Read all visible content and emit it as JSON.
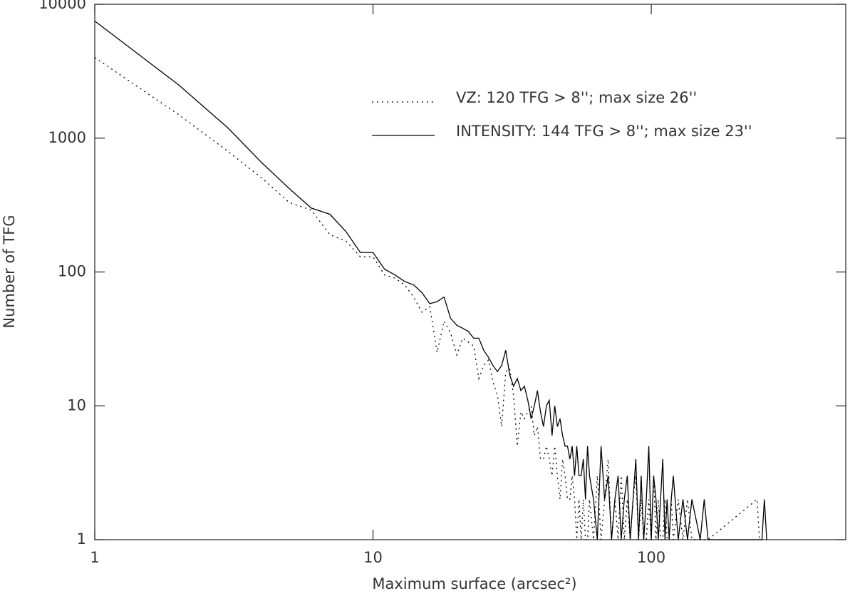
{
  "chart_data": {
    "type": "line",
    "xlabel": "Maximum surface (arcsec²)",
    "ylabel": "Number of TFG",
    "xscale": "log",
    "yscale": "log",
    "xlim": [
      1,
      500
    ],
    "ylim": [
      1,
      10000
    ],
    "xticks": [
      1,
      10,
      100
    ],
    "yticks": [
      1,
      10,
      100,
      1000,
      10000
    ],
    "legend": "upper right",
    "x": [
      1,
      2,
      3,
      4,
      5,
      6,
      7,
      8,
      9,
      10,
      11,
      12,
      13,
      14,
      15,
      16,
      17,
      18,
      19,
      20,
      21,
      22,
      23,
      24,
      25,
      26,
      27,
      28,
      29,
      30,
      31,
      32,
      33,
      34,
      35,
      36,
      37,
      38,
      39,
      40,
      41,
      42,
      43,
      44,
      45,
      46,
      47,
      48,
      49,
      50,
      51,
      52,
      53,
      54,
      55,
      56,
      57,
      58,
      59,
      60,
      62,
      64,
      66,
      68,
      70,
      72,
      74,
      76,
      78,
      80,
      82,
      84,
      86,
      88,
      90,
      92,
      94,
      96,
      98,
      100,
      102,
      104,
      106,
      108,
      110,
      112,
      114,
      116,
      118,
      120,
      125,
      130,
      135,
      140,
      150,
      155,
      160,
      240,
      245,
      250,
      255,
      260
    ],
    "series": [
      {
        "name": "VZ: 120 TFG > 8''; max size 26''",
        "color": "#000000",
        "dash": "dotted",
        "values": [
          4000,
          1500,
          800,
          500,
          330,
          290,
          190,
          170,
          130,
          130,
          95,
          90,
          80,
          65,
          50,
          55,
          25,
          43,
          35,
          24,
          32,
          30,
          28,
          16,
          20,
          22,
          15,
          12,
          7,
          18,
          19,
          12,
          5,
          9,
          8,
          9,
          10,
          6,
          7,
          4,
          4,
          5,
          4,
          3,
          5,
          3,
          2,
          4,
          3,
          2,
          2,
          3,
          2,
          1,
          2,
          1,
          2,
          1,
          1,
          2,
          1,
          3,
          1,
          2,
          4,
          1,
          2,
          1,
          3,
          1,
          2,
          1,
          2,
          3,
          1,
          2,
          1,
          1,
          2,
          1,
          3,
          1,
          2,
          1,
          1,
          2,
          1,
          1,
          2,
          1,
          2,
          1,
          2,
          1,
          1,
          1,
          1,
          2,
          1,
          1,
          1,
          1
        ]
      },
      {
        "name": "INTENSITY: 144 TFG > 8''; max size 23''",
        "color": "#000000",
        "dash": "solid",
        "values": [
          7500,
          2500,
          1200,
          650,
          420,
          300,
          270,
          200,
          140,
          140,
          105,
          95,
          85,
          80,
          70,
          58,
          60,
          65,
          45,
          40,
          38,
          36,
          32,
          32,
          26,
          23,
          20,
          18,
          20,
          26,
          17,
          14,
          16,
          13,
          14,
          11,
          8,
          10,
          13,
          9,
          7,
          10,
          11,
          6,
          10,
          7,
          8,
          6,
          5,
          5,
          4,
          5,
          3,
          5,
          3,
          3,
          4,
          2,
          5,
          3,
          2,
          1,
          5,
          2,
          3,
          1,
          2,
          3,
          1,
          2,
          3,
          1,
          2,
          4,
          1,
          3,
          1,
          2,
          5,
          1,
          3,
          2,
          1,
          2,
          4,
          1,
          2,
          1,
          2,
          3,
          1,
          2,
          1,
          2,
          1,
          2,
          1,
          1,
          1,
          1,
          2,
          1
        ]
      }
    ]
  }
}
